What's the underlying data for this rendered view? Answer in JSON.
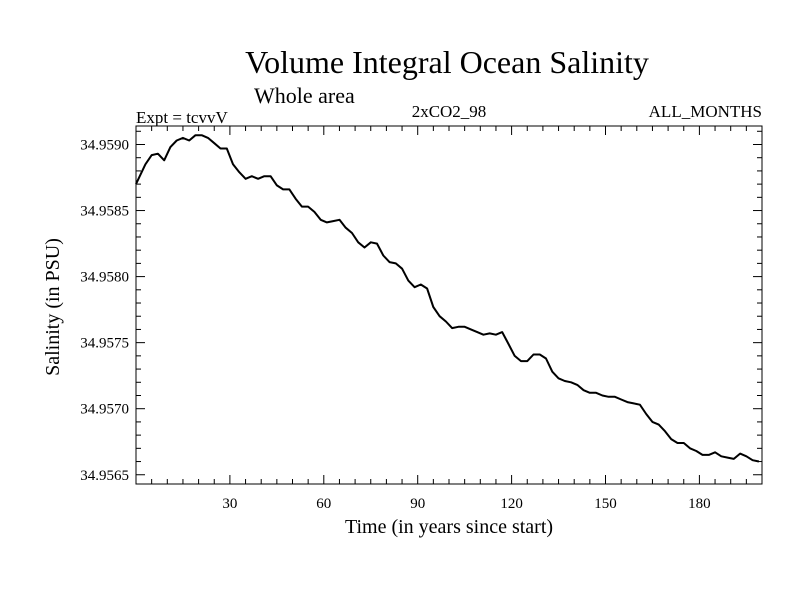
{
  "chart_data": {
    "type": "line",
    "title": "Volume Integral Ocean Salinity",
    "subtitle": "Whole area",
    "experiment_label": "Expt = tcvvV",
    "run_label": "2xCO2_98",
    "period_label": "ALL_MONTHS",
    "xlabel": "Time (in years since start)",
    "ylabel": "Salinity (in PSU)",
    "xlim": [
      0,
      200
    ],
    "ylim": [
      34.95643,
      34.95914
    ],
    "x_major_ticks": [
      30,
      60,
      90,
      120,
      150,
      180
    ],
    "y_major_ticks": [
      34.9565,
      34.957,
      34.9575,
      34.958,
      34.9585,
      34.959
    ],
    "x_tick_labels": [
      "30",
      "60",
      "90",
      "120",
      "150",
      "180"
    ],
    "y_tick_labels": [
      "34.9565",
      "34.9570",
      "34.9575",
      "34.9580",
      "34.9585",
      "34.9590"
    ],
    "grid": false,
    "series": [
      {
        "name": "Salinity",
        "x": [
          0,
          3,
          5,
          7,
          9,
          11,
          13,
          15,
          17,
          19,
          21,
          23,
          25,
          27,
          29,
          31,
          33,
          35,
          37,
          39,
          41,
          43,
          45,
          47,
          49,
          51,
          53,
          55,
          57,
          59,
          61,
          63,
          65,
          67,
          69,
          71,
          73,
          75,
          77,
          79,
          81,
          83,
          85,
          87,
          89,
          91,
          93,
          95,
          97,
          99,
          101,
          103,
          105,
          107,
          109,
          111,
          113,
          115,
          117,
          119,
          121,
          123,
          125,
          127,
          129,
          131,
          133,
          135,
          137,
          139,
          141,
          143,
          145,
          147,
          149,
          151,
          153,
          155,
          157,
          159,
          161,
          163,
          165,
          167,
          169,
          171,
          173,
          175,
          177,
          179,
          181,
          183,
          185,
          187,
          189,
          191,
          193,
          195,
          197,
          199
        ],
        "values": [
          34.9587,
          34.95885,
          34.95892,
          34.95893,
          34.95888,
          34.95898,
          34.95903,
          34.95905,
          34.95903,
          34.95907,
          34.95907,
          34.95905,
          34.95901,
          34.95897,
          34.95897,
          34.95885,
          34.95879,
          34.95874,
          34.95876,
          34.95874,
          34.95876,
          34.95876,
          34.95869,
          34.95866,
          34.95866,
          34.95859,
          34.95853,
          34.95853,
          34.95849,
          34.95843,
          34.95841,
          34.95842,
          34.95843,
          34.95837,
          34.95833,
          34.95826,
          34.95822,
          34.95826,
          34.95825,
          34.95816,
          34.95811,
          34.9581,
          34.95806,
          34.95797,
          34.95792,
          34.95794,
          34.95791,
          34.95777,
          34.9577,
          34.95766,
          34.95761,
          34.95762,
          34.95762,
          34.9576,
          34.95758,
          34.95756,
          34.95757,
          34.95756,
          34.95758,
          34.95749,
          34.9574,
          34.95736,
          34.95736,
          34.95741,
          34.95741,
          34.95738,
          34.95728,
          34.95723,
          34.95721,
          34.9572,
          34.95718,
          34.95714,
          34.95712,
          34.95712,
          34.9571,
          34.95709,
          34.95709,
          34.95707,
          34.95705,
          34.95704,
          34.95703,
          34.95696,
          34.9569,
          34.95688,
          34.95683,
          34.95677,
          34.95674,
          34.95674,
          34.9567,
          34.95668,
          34.95665,
          34.95665,
          34.95667,
          34.95664,
          34.95663,
          34.95662,
          34.95666,
          34.95664,
          34.95661,
          34.9566
        ]
      }
    ]
  }
}
